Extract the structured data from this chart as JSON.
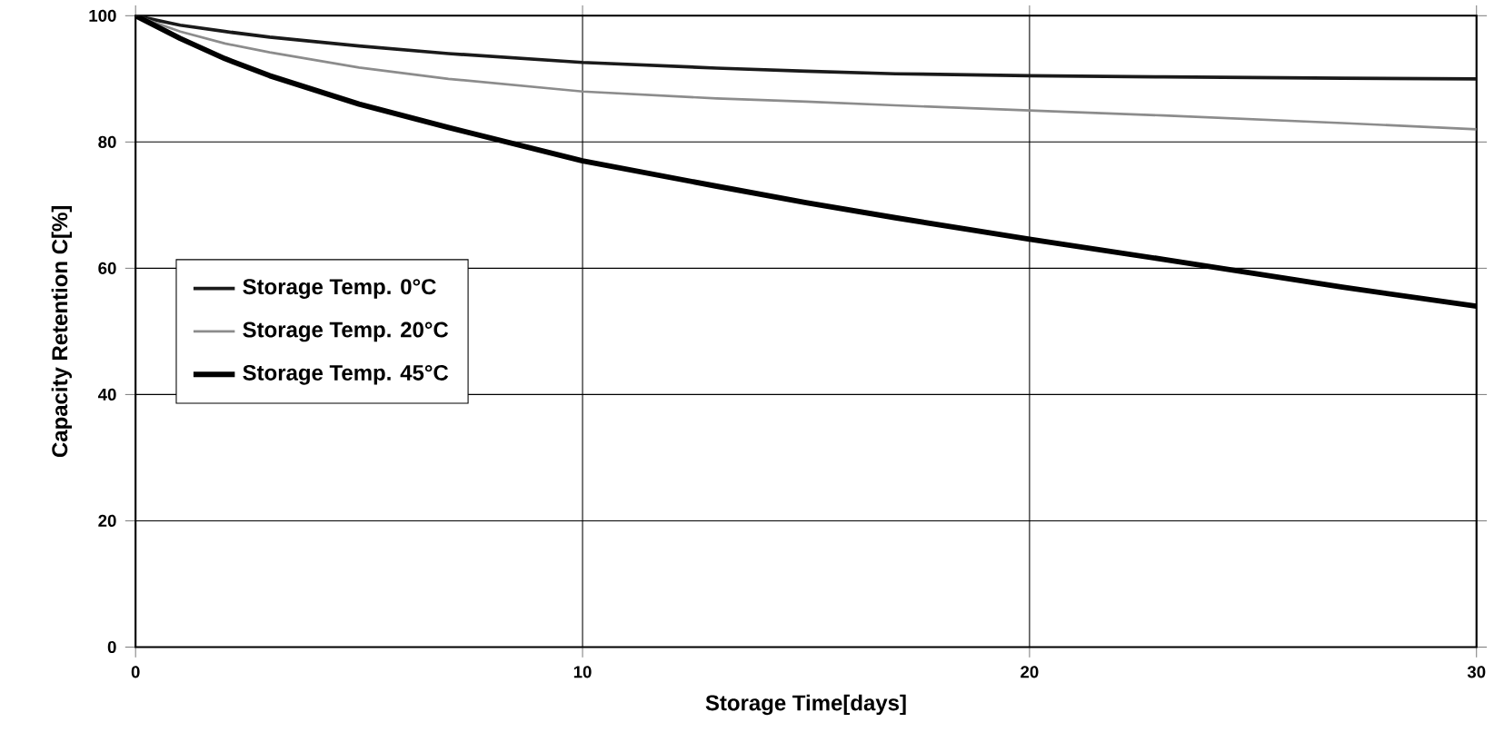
{
  "chart_data": {
    "type": "line",
    "xlabel": "Storage Time[days]",
    "ylabel": "Capacity  Retention C[%]",
    "xlim": [
      0,
      30
    ],
    "ylim": [
      0,
      100
    ],
    "xticks": [
      0,
      10,
      20,
      30
    ],
    "yticks": [
      0,
      20,
      40,
      60,
      80,
      100
    ],
    "grid": true,
    "legend": "left",
    "line_style": "solid",
    "marker": "none",
    "x": [
      0,
      1,
      2,
      3,
      5,
      7,
      10,
      13,
      15,
      17,
      20,
      23,
      25,
      27,
      30
    ],
    "series": [
      {
        "name": "Storage Temp.  0°C",
        "color": "#1a1a1a",
        "values": [
          100,
          98.5,
          97.5,
          96.6,
          95.2,
          94,
          92.6,
          91.7,
          91.2,
          90.8,
          90.5,
          90.3,
          90.2,
          90.1,
          90
        ]
      },
      {
        "name": "Storage Temp.  20°C",
        "color": "#8c8c8c",
        "values": [
          100,
          97.5,
          95.6,
          94.2,
          91.8,
          90,
          88,
          86.9,
          86.4,
          85.8,
          85,
          84.2,
          83.6,
          83,
          82
        ]
      },
      {
        "name": "Storage Temp. 45°C",
        "color": "#000000",
        "values": [
          100,
          96.4,
          93.2,
          90.5,
          86,
          82.3,
          77,
          73,
          70.4,
          68,
          64.6,
          61.4,
          59.2,
          57,
          54
        ]
      }
    ]
  }
}
